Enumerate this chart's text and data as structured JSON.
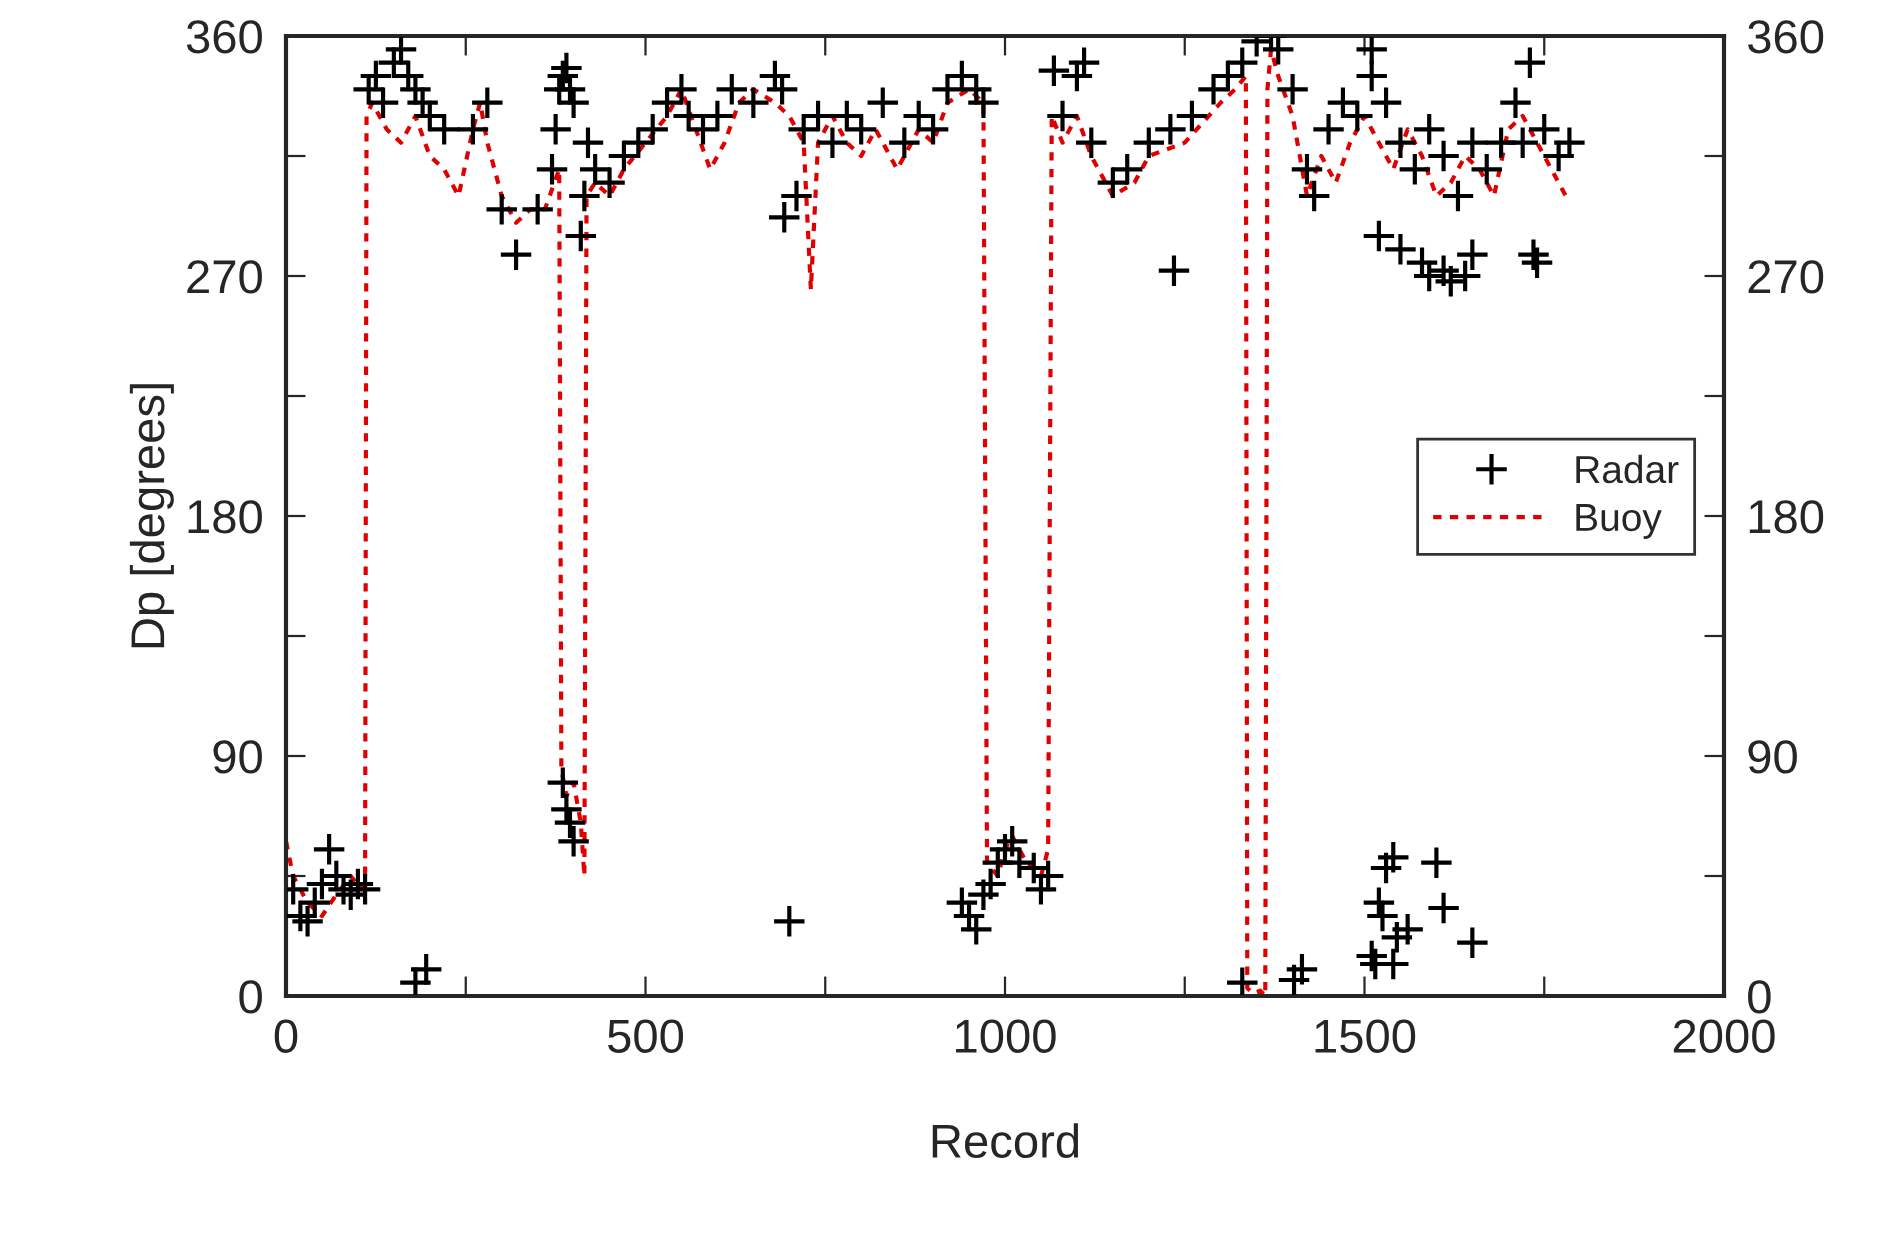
{
  "chart_data": {
    "type": "scatter",
    "xlabel": "Record",
    "ylabel": "Dp [degrees]",
    "xlim": [
      0,
      2000
    ],
    "xticks": [
      0,
      {
        "value": 250,
        "label": null
      },
      500,
      {
        "value": 750,
        "label": null
      },
      1000,
      {
        "value": 1250,
        "label": null
      },
      1500,
      {
        "value": 1750,
        "label": null
      },
      2000
    ],
    "ylim": [
      0,
      360
    ],
    "yticks": [
      0,
      {
        "value": 45,
        "label": null
      },
      90,
      {
        "value": 135,
        "label": null
      },
      180,
      {
        "value": 225,
        "label": null
      },
      270,
      {
        "value": 315,
        "label": null
      },
      360
    ],
    "y2lim": [
      0,
      360
    ],
    "y2ticks": [
      0,
      {
        "value": 45,
        "label": null
      },
      90,
      {
        "value": 135,
        "label": null
      },
      180,
      {
        "value": 225,
        "label": null
      },
      270,
      {
        "value": 315,
        "label": null
      },
      360
    ],
    "legend": "right",
    "grid": false,
    "series": [
      {
        "name": "Radar",
        "marker": "cross",
        "color": "#000000",
        "x": [
          10,
          20,
          30,
          40,
          50,
          60,
          70,
          80,
          90,
          100,
          110,
          115,
          125,
          135,
          150,
          160,
          170,
          180,
          190,
          200,
          220,
          260,
          280,
          300,
          350,
          370,
          375,
          380,
          385,
          390,
          395,
          400,
          385,
          390,
          395,
          400,
          410,
          415,
          420,
          430,
          450,
          470,
          490,
          510,
          530,
          550,
          560,
          580,
          600,
          620,
          650,
          680,
          690,
          710,
          720,
          740,
          760,
          780,
          800,
          830,
          860,
          880,
          900,
          920,
          940,
          960,
          970,
          940,
          950,
          960,
          970,
          980,
          990,
          1000,
          1010,
          1020,
          1040,
          1050,
          1060,
          1068,
          1080,
          1100,
          1110,
          1120,
          1150,
          1170,
          1200,
          1230,
          1260,
          1290,
          1310,
          1330,
          1350,
          1370,
          1380,
          1400,
          1420,
          1430,
          1450,
          1470,
          1490,
          1510,
          1530,
          1550,
          1570,
          1590,
          1610,
          1630,
          1650,
          1670,
          1690,
          1710,
          1720,
          1750,
          1770,
          1785,
          180,
          195,
          320,
          700,
          693,
          1235,
          1330,
          1402,
          1413,
          1510,
          1515,
          1520,
          1525,
          1530,
          1540,
          1540,
          1545,
          1560,
          1600,
          1610,
          1650,
          1520,
          1550,
          1580,
          1590,
          1610,
          1620,
          1640,
          1650,
          1735,
          1740,
          1510,
          1730
        ],
        "values": [
          40,
          30,
          28,
          35,
          42,
          55,
          45,
          40,
          38,
          42,
          40,
          340,
          345,
          335,
          350,
          355,
          345,
          340,
          335,
          330,
          325,
          325,
          335,
          295,
          295,
          310,
          325,
          340,
          345,
          348,
          340,
          335,
          80,
          70,
          65,
          58,
          285,
          300,
          320,
          310,
          305,
          315,
          320,
          325,
          335,
          340,
          330,
          325,
          330,
          340,
          335,
          345,
          340,
          300,
          325,
          330,
          320,
          330,
          325,
          335,
          320,
          330,
          325,
          340,
          345,
          340,
          335,
          35,
          30,
          25,
          38,
          42,
          50,
          55,
          58,
          50,
          48,
          40,
          45,
          347,
          330,
          345,
          350,
          320,
          305,
          310,
          320,
          325,
          330,
          340,
          345,
          350,
          358,
          360,
          355,
          340,
          310,
          300,
          325,
          335,
          330,
          345,
          335,
          320,
          310,
          325,
          315,
          300,
          320,
          310,
          320,
          335,
          320,
          325,
          315,
          320,
          5,
          10,
          278,
          28,
          292,
          272,
          5,
          6,
          10,
          15,
          12,
          35,
          30,
          48,
          52,
          12,
          22,
          25,
          50,
          33,
          20,
          285,
          280,
          275,
          270,
          272,
          268,
          270,
          278,
          278,
          275,
          355,
          350
        ]
      },
      {
        "name": "Buoy",
        "type": "line",
        "line_style": "dashed",
        "color": "#e00000",
        "x": [
          0,
          10,
          30,
          50,
          70,
          90,
          105,
          110,
          112,
          120,
          140,
          160,
          180,
          200,
          220,
          240,
          260,
          270,
          280,
          300,
          320,
          340,
          360,
          380,
          383,
          390,
          400,
          410,
          415,
          418,
          430,
          450,
          470,
          500,
          530,
          550,
          570,
          590,
          610,
          630,
          650,
          680,
          700,
          720,
          730,
          740,
          760,
          780,
          800,
          820,
          850,
          880,
          900,
          920,
          950,
          970,
          975,
          990,
          1000,
          1010,
          1030,
          1050,
          1060,
          1065,
          1080,
          1100,
          1120,
          1150,
          1180,
          1200,
          1250,
          1300,
          1320,
          1335,
          1337,
          1345,
          1355,
          1362,
          1365,
          1370,
          1380,
          1400,
          1420,
          1440,
          1460,
          1480,
          1500,
          1520,
          1540,
          1560,
          1580,
          1600,
          1620,
          1640,
          1660,
          1680,
          1700,
          1720,
          1740,
          1760,
          1780
        ],
        "values": [
          58,
          45,
          35,
          30,
          38,
          45,
          40,
          45,
          330,
          335,
          325,
          320,
          330,
          315,
          310,
          300,
          325,
          335,
          320,
          300,
          290,
          295,
          295,
          310,
          85,
          75,
          80,
          65,
          45,
          300,
          305,
          300,
          310,
          320,
          330,
          340,
          325,
          310,
          320,
          335,
          340,
          335,
          330,
          320,
          265,
          320,
          330,
          320,
          315,
          325,
          310,
          325,
          320,
          335,
          340,
          335,
          50,
          45,
          55,
          60,
          50,
          45,
          55,
          330,
          320,
          330,
          315,
          300,
          305,
          315,
          320,
          335,
          340,
          345,
          3,
          1,
          2,
          0,
          340,
          355,
          345,
          330,
          300,
          315,
          305,
          320,
          330,
          320,
          310,
          325,
          315,
          300,
          305,
          315,
          310,
          300,
          325,
          330,
          320,
          310,
          300
        ]
      }
    ]
  }
}
